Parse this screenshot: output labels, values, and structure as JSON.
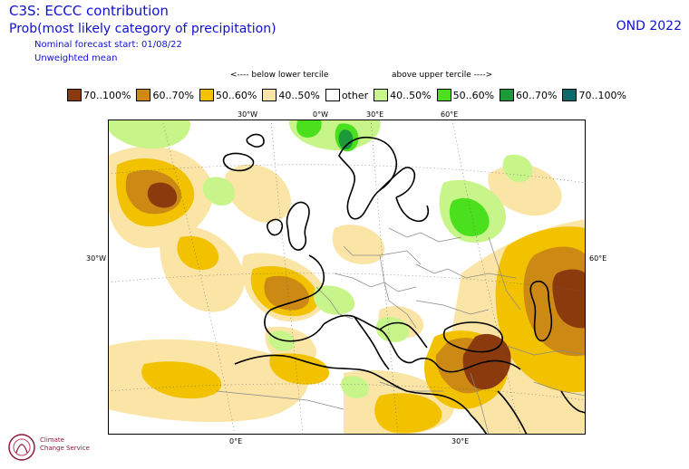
{
  "header": {
    "title": "C3S: ECCC contribution",
    "subtitle": "Prob(most likely category of precipitation)",
    "forecast_start": "Nominal forecast start: 01/08/22",
    "mean_type": "Unweighted mean",
    "season": "OND 2022"
  },
  "tercile_labels": {
    "below": "<---- below lower tercile",
    "above": "above upper tercile ---->"
  },
  "legend": [
    {
      "label": "70..100%",
      "color": "#8b3a0e"
    },
    {
      "label": "60..70%",
      "color": "#cc8a14"
    },
    {
      "label": "50..60%",
      "color": "#f2c200"
    },
    {
      "label": "40..50%",
      "color": "#fbe5a6"
    },
    {
      "label": "other",
      "color": "#ffffff"
    },
    {
      "label": "40..50%",
      "color": "#c8f58a"
    },
    {
      "label": "50..60%",
      "color": "#4be01e"
    },
    {
      "label": "60..70%",
      "color": "#1c9a3a"
    },
    {
      "label": "70..100%",
      "color": "#0d6a6a"
    }
  ],
  "map_labels": {
    "top": [
      "30°W",
      "0°W",
      "30°E",
      "60°E"
    ],
    "left": "30°W",
    "right": "60°E",
    "bottom": [
      "0°E",
      "30°E"
    ]
  },
  "logo": {
    "line1": "Climate",
    "line2": "Change Service"
  }
}
